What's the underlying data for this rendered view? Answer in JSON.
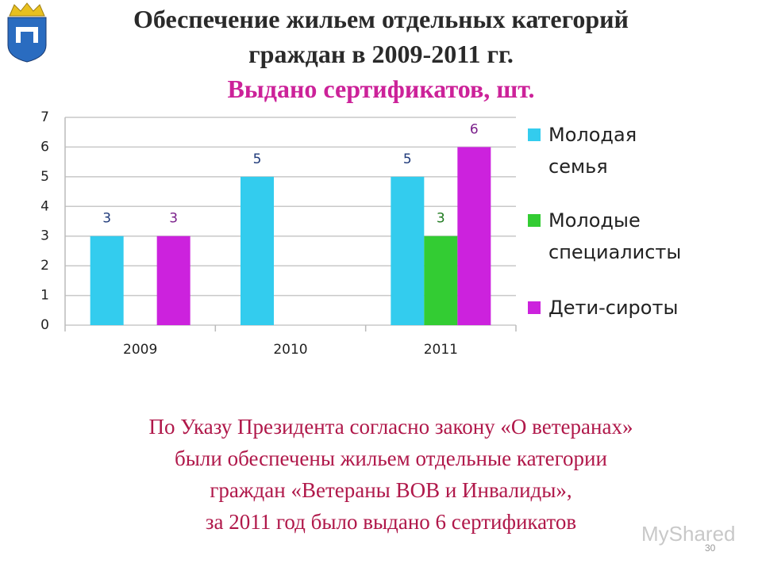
{
  "chart_data": {
    "type": "bar",
    "title": [
      "Обеспечение жильем отдельных категорий",
      "граждан в 2009-2011 гг."
    ],
    "subtitle": "Выдано сертификатов, шт.",
    "categories": [
      "2009",
      "2010",
      "2011"
    ],
    "series": [
      {
        "name": "Молодая семья",
        "color": "#33ccee",
        "label_color": "#1f3a7a",
        "values": [
          3,
          5,
          5
        ]
      },
      {
        "name": "Молодые специалисты",
        "color": "#33cc33",
        "label_color": "#1e7a1e",
        "values": [
          null,
          null,
          3
        ]
      },
      {
        "name": "Дети-сироты",
        "color": "#cc22dd",
        "label_color": "#7a1f8a",
        "values": [
          3,
          null,
          6
        ]
      }
    ],
    "ylim": [
      0,
      7
    ],
    "yticks": [
      0,
      1,
      2,
      3,
      4,
      5,
      6,
      7
    ],
    "grid": true,
    "legend": "right"
  },
  "footer_text": [
    "По Указу Президента согласно закону  «О ветеранах»",
    "были обеспечены жильем отдельные категории",
    "граждан «Ветераны ВОВ и Инвалиды»,",
    "за 2011 год было выдано 6 сертификатов"
  ],
  "slide_number": "30",
  "watermark": "MyShared"
}
